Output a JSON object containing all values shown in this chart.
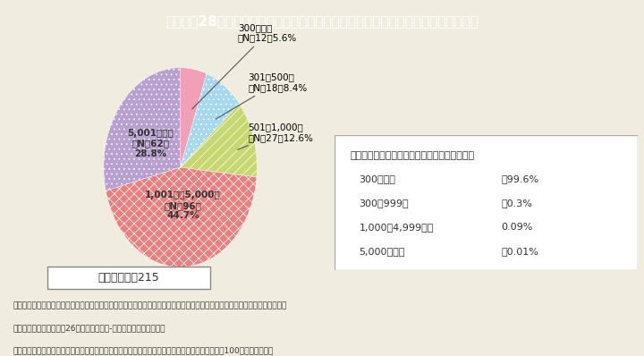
{
  "title": "Ｉ－特－28図　企業規模別の「えるぼし」認定企業数と認定企業総数に占める割合",
  "title_bg": "#4a90a4",
  "title_color": "#ffffff",
  "bg_color": "#f0ede0",
  "slices": [
    {
      "label": "300人以下\n（N＝12）5.6%",
      "value": 5.6,
      "color_type": "pink",
      "inner_label": null
    },
    {
      "label": "301～500人\n（N＝18）8.4%",
      "value": 8.4,
      "color_type": "blue_dot",
      "inner_label": null
    },
    {
      "label": "501～1,000人\n（N＝27）12.6%",
      "value": 12.6,
      "color_type": "yellow_stripe",
      "inner_label": null
    },
    {
      "label": "1,001人～5,000人\n（N＝96）\n44.7%",
      "value": 44.7,
      "color_type": "red_dot",
      "inner_label": "1,001人～5,000人\n（N＝96）\n44.7%"
    },
    {
      "label": "5,001人以上\n（N＝62）\n28.8%",
      "value": 28.8,
      "color_type": "purple_dot",
      "inner_label": "5,001人以上\n（N＝62）\n28.8%"
    }
  ],
  "colors": {
    "pink": "#f4a7b9",
    "blue_dot": "#87ceeb",
    "yellow_stripe": "#c8d96f",
    "red_dot": "#e87878",
    "purple_dot": "#b8a0cc"
  },
  "total_label": "認定企業数：215",
  "reference_title": "【参考】総企業数に占める規模別企業数の割合",
  "reference_items": [
    {
      "label": "300人未満",
      "value": "：99.6%"
    },
    {
      "label": "300～999人",
      "value": "：0.3%"
    },
    {
      "label": "1,000～4,999人：",
      "value": "0.09%"
    },
    {
      "label": "5,000人以上",
      "value": "：0.01%"
    }
  ],
  "footnotes": [
    "（備考）１．厚生労働省ホームページ掲載資料を基に内閣府男女共同参画局にて作成。総企業数に占める規模別企業数の割合は",
    "　　　　　総務省「平成26年経済センサス-基礎調査」により作成。",
    "　　　２．認定企業総数に占める割合は，小数点以下第２位を四捨五入しているため，合計しても100とはならない。"
  ]
}
